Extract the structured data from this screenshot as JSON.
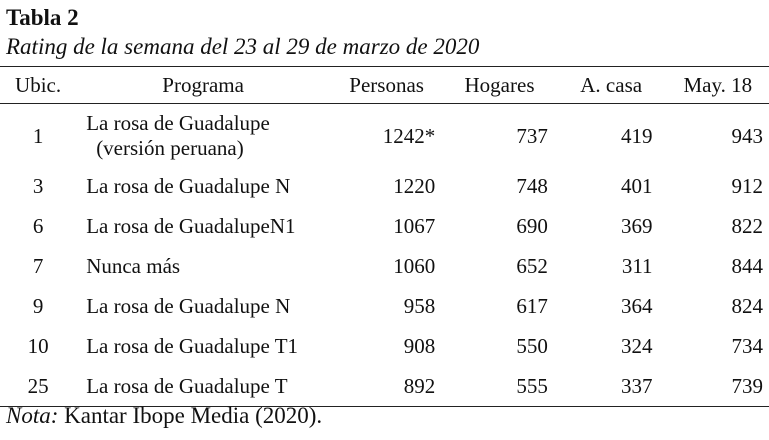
{
  "table": {
    "number": "Tabla 2",
    "caption": "Rating de la semana del 23 al 29 de marzo de 2020",
    "headers": {
      "ubic": "Ubic.",
      "programa": "Programa",
      "personas": "Personas",
      "hogares": "Hogares",
      "acasa": "A. casa",
      "may18": "May. 18"
    },
    "rows": [
      {
        "ubic": "1",
        "programa": "La rosa de Guadalupe",
        "programa_line2": "(versión peruana)",
        "personas": "1242*",
        "hogares": "737",
        "acasa": "419",
        "may18": "943"
      },
      {
        "ubic": "3",
        "programa": "La rosa de Guadalupe N",
        "personas": "1220",
        "hogares": "748",
        "acasa": "401",
        "may18": "912"
      },
      {
        "ubic": "6",
        "programa": "La rosa de GuadalupeN1",
        "personas": "1067",
        "hogares": "690",
        "acasa": "369",
        "may18": "822"
      },
      {
        "ubic": "7",
        "programa": "Nunca más",
        "personas": "1060",
        "hogares": "652",
        "acasa": "311",
        "may18": "844"
      },
      {
        "ubic": "9",
        "programa": "La rosa de Guadalupe N",
        "personas": "958",
        "hogares": "617",
        "acasa": "364",
        "may18": "824"
      },
      {
        "ubic": "10",
        "programa": "La rosa de Guadalupe T1",
        "personas": "908",
        "hogares": "550",
        "acasa": "324",
        "may18": "734"
      },
      {
        "ubic": "25",
        "programa": "La rosa de Guadalupe T",
        "personas": "892",
        "hogares": "555",
        "acasa": "337",
        "may18": "739"
      }
    ]
  },
  "note": {
    "label": "Nota:",
    "text": " Kantar Ibope Media (2020)."
  }
}
